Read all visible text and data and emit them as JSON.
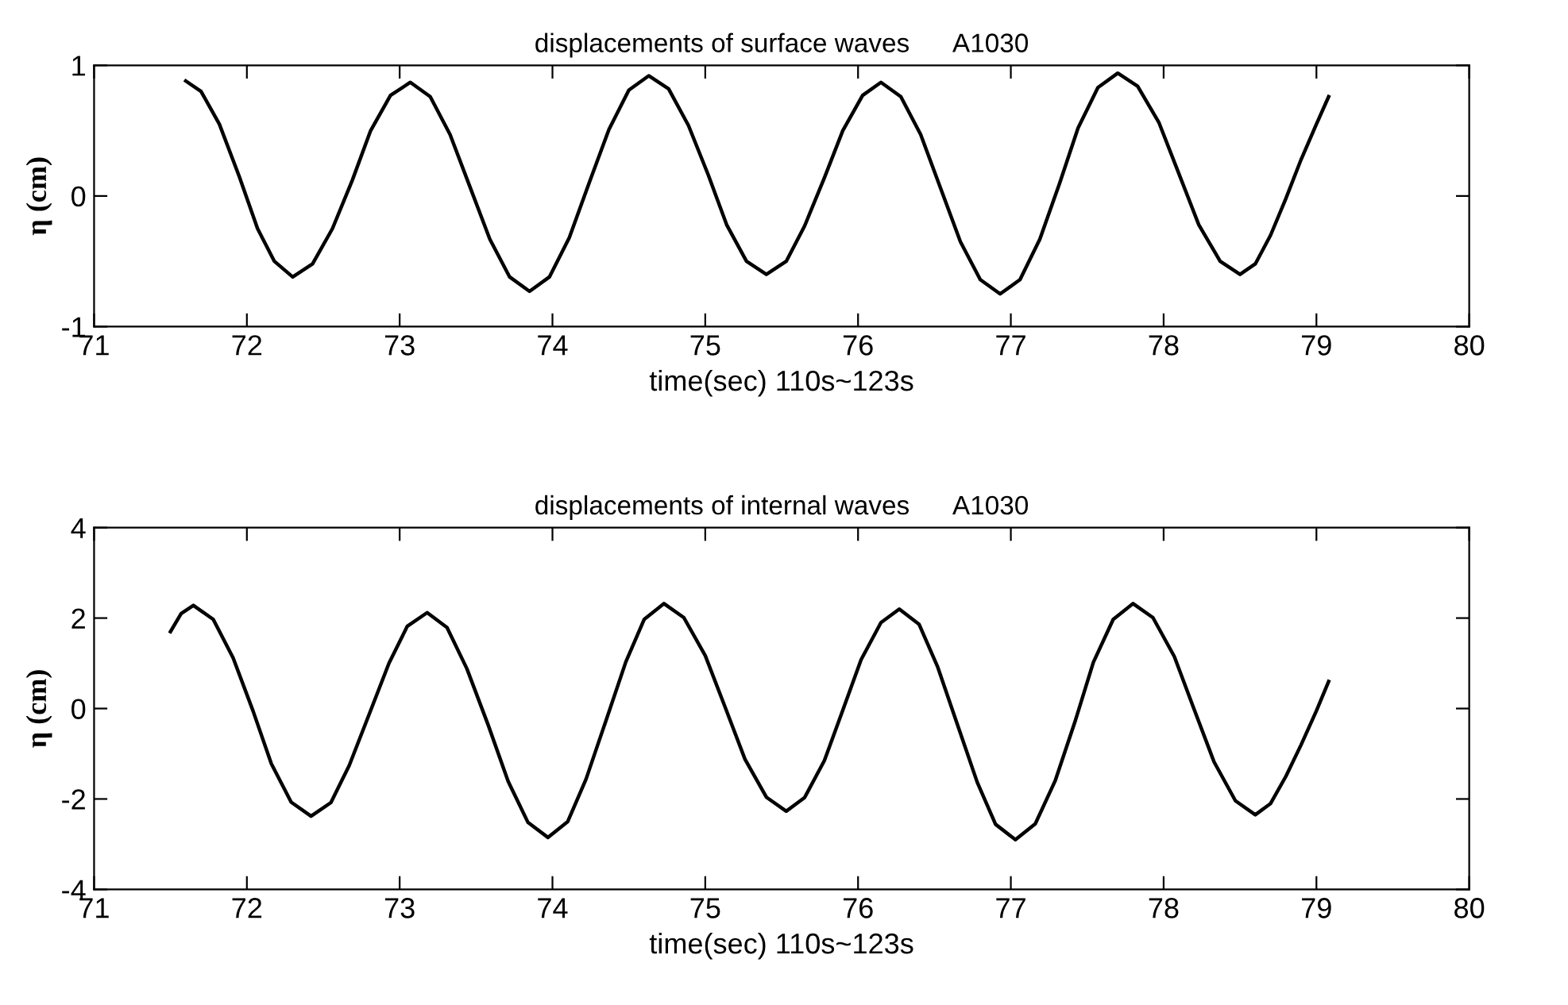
{
  "chart_data": [
    {
      "type": "line",
      "title": "displacements of surface waves      A1030",
      "xlabel": "time(sec) 110s~123s",
      "ylabel": "η (cm)",
      "x": [
        71.6,
        71.7,
        71.82,
        71.95,
        72.07,
        72.18,
        72.3,
        72.43,
        72.56,
        72.69,
        72.81,
        72.94,
        73.07,
        73.2,
        73.33,
        73.46,
        73.59,
        73.72,
        73.85,
        73.98,
        74.11,
        74.24,
        74.37,
        74.5,
        74.63,
        74.76,
        74.89,
        75.02,
        75.14,
        75.27,
        75.4,
        75.53,
        75.65,
        75.78,
        75.9,
        76.03,
        76.15,
        76.28,
        76.41,
        76.54,
        76.67,
        76.8,
        76.93,
        77.06,
        77.19,
        77.32,
        77.44,
        77.57,
        77.7,
        77.83,
        77.97,
        78.1,
        78.23,
        78.37,
        78.5,
        78.6,
        78.7,
        78.8,
        78.9,
        79.0,
        79.08
      ],
      "series": [
        {
          "color": "#000000",
          "values": [
            0.88,
            0.8,
            0.55,
            0.15,
            -0.25,
            -0.5,
            -0.62,
            -0.52,
            -0.25,
            0.12,
            0.5,
            0.77,
            0.87,
            0.76,
            0.47,
            0.07,
            -0.33,
            -0.62,
            -0.73,
            -0.62,
            -0.32,
            0.1,
            0.51,
            0.81,
            0.92,
            0.82,
            0.54,
            0.16,
            -0.22,
            -0.5,
            -0.6,
            -0.5,
            -0.23,
            0.14,
            0.5,
            0.77,
            0.87,
            0.76,
            0.47,
            0.06,
            -0.35,
            -0.64,
            -0.75,
            -0.64,
            -0.33,
            0.1,
            0.52,
            0.83,
            0.94,
            0.84,
            0.56,
            0.17,
            -0.22,
            -0.5,
            -0.6,
            -0.52,
            -0.3,
            -0.02,
            0.28,
            0.55,
            0.76
          ]
        }
      ],
      "xlim": [
        71,
        80
      ],
      "xticks": [
        71,
        72,
        73,
        74,
        75,
        76,
        77,
        78,
        79,
        80
      ],
      "ylim": [
        -1,
        1
      ],
      "yticks": [
        -1,
        0,
        1
      ],
      "grid": false,
      "legend": false
    },
    {
      "type": "line",
      "title": "displacements of internal waves      A1030",
      "xlabel": "time(sec) 110s~123s",
      "ylabel": "η (cm)",
      "x": [
        71.5,
        71.57,
        71.65,
        71.78,
        71.91,
        72.04,
        72.16,
        72.29,
        72.42,
        72.55,
        72.67,
        72.8,
        72.93,
        73.05,
        73.18,
        73.31,
        73.44,
        73.58,
        73.71,
        73.84,
        73.97,
        74.1,
        74.22,
        74.35,
        74.48,
        74.6,
        74.73,
        74.86,
        75.0,
        75.13,
        75.26,
        75.4,
        75.53,
        75.65,
        75.78,
        75.9,
        76.02,
        76.15,
        76.27,
        76.4,
        76.52,
        76.65,
        76.78,
        76.9,
        77.03,
        77.16,
        77.29,
        77.42,
        77.54,
        77.67,
        77.8,
        77.93,
        78.07,
        78.2,
        78.33,
        78.47,
        78.6,
        78.7,
        78.8,
        78.9,
        79.0,
        79.08
      ],
      "series": [
        {
          "color": "#000000",
          "values": [
            1.7,
            2.1,
            2.28,
            1.97,
            1.12,
            -0.05,
            -1.22,
            -2.07,
            -2.38,
            -2.08,
            -1.26,
            -0.13,
            1.0,
            1.82,
            2.12,
            1.79,
            0.88,
            -0.37,
            -1.61,
            -2.52,
            -2.85,
            -2.5,
            -1.56,
            -0.27,
            1.03,
            1.97,
            2.32,
            2.01,
            1.17,
            0.03,
            -1.12,
            -1.96,
            -2.27,
            -1.97,
            -1.15,
            -0.04,
            1.08,
            1.9,
            2.2,
            1.86,
            0.93,
            -0.35,
            -1.63,
            -2.56,
            -2.9,
            -2.55,
            -1.6,
            -0.29,
            1.02,
            1.97,
            2.32,
            2.01,
            1.15,
            -0.02,
            -1.18,
            -2.04,
            -2.35,
            -2.1,
            -1.5,
            -0.8,
            -0.05,
            0.6
          ]
        }
      ],
      "xlim": [
        71,
        80
      ],
      "xticks": [
        71,
        72,
        73,
        74,
        75,
        76,
        77,
        78,
        79,
        80
      ],
      "ylim": [
        -4,
        4
      ],
      "yticks": [
        -4,
        -2,
        0,
        2,
        4
      ],
      "grid": false,
      "legend": false
    }
  ]
}
